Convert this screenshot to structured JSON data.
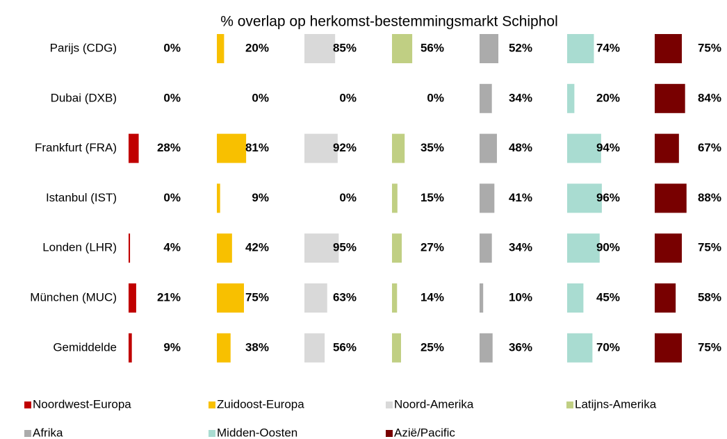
{
  "chart_data": {
    "type": "bar",
    "orientation": "horizontal",
    "title": "% overlap op herkomst-bestemmingsmarkt Schiphol",
    "categories": [
      "Parijs (CDG)",
      "Dubai (DXB)",
      "Frankfurt (FRA)",
      "Istanbul (IST)",
      "Londen (LHR)",
      "München (MUC)",
      "Gemiddelde"
    ],
    "series": [
      {
        "name": "Noordwest-Europa",
        "color": "#c00000",
        "values": [
          0,
          0,
          28,
          0,
          4,
          21,
          9
        ],
        "value_labels": [
          "0%",
          "0%",
          "28%",
          "0%",
          "4%",
          "21%",
          "9%"
        ]
      },
      {
        "name": "Zuidoost-Europa",
        "color": "#f8c000",
        "values": [
          20,
          0,
          81,
          9,
          42,
          75,
          38
        ],
        "value_labels": [
          "20%",
          "0%",
          "81%",
          "9%",
          "42%",
          "75%",
          "38%"
        ]
      },
      {
        "name": "Noord-Amerika",
        "color": "#d9d9d9",
        "values": [
          85,
          0,
          92,
          0,
          95,
          63,
          56
        ],
        "value_labels": [
          "85%",
          "0%",
          "92%",
          "0%",
          "95%",
          "63%",
          "56%"
        ]
      },
      {
        "name": "Latijns-Amerika",
        "color": "#c0cf83",
        "values": [
          56,
          0,
          35,
          15,
          27,
          14,
          25
        ],
        "value_labels": [
          "56%",
          "0%",
          "35%",
          "15%",
          "27%",
          "14%",
          "25%"
        ]
      },
      {
        "name": "Afrika",
        "color": "#ababab",
        "values": [
          52,
          34,
          48,
          41,
          34,
          10,
          36
        ],
        "value_labels": [
          "52%",
          "34%",
          "48%",
          "41%",
          "34%",
          "10%",
          "36%"
        ]
      },
      {
        "name": "Midden-Oosten",
        "color": "#a9dcd1",
        "values": [
          74,
          20,
          94,
          96,
          90,
          45,
          70
        ],
        "value_labels": [
          "74%",
          "20%",
          "94%",
          "96%",
          "90%",
          "45%",
          "70%"
        ]
      },
      {
        "name": "Azië/Pacific",
        "color": "#780000",
        "values": [
          75,
          84,
          67,
          88,
          75,
          58,
          75
        ],
        "value_labels": [
          "75%",
          "84%",
          "67%",
          "88%",
          "75%",
          "58%",
          "75%"
        ]
      }
    ]
  }
}
